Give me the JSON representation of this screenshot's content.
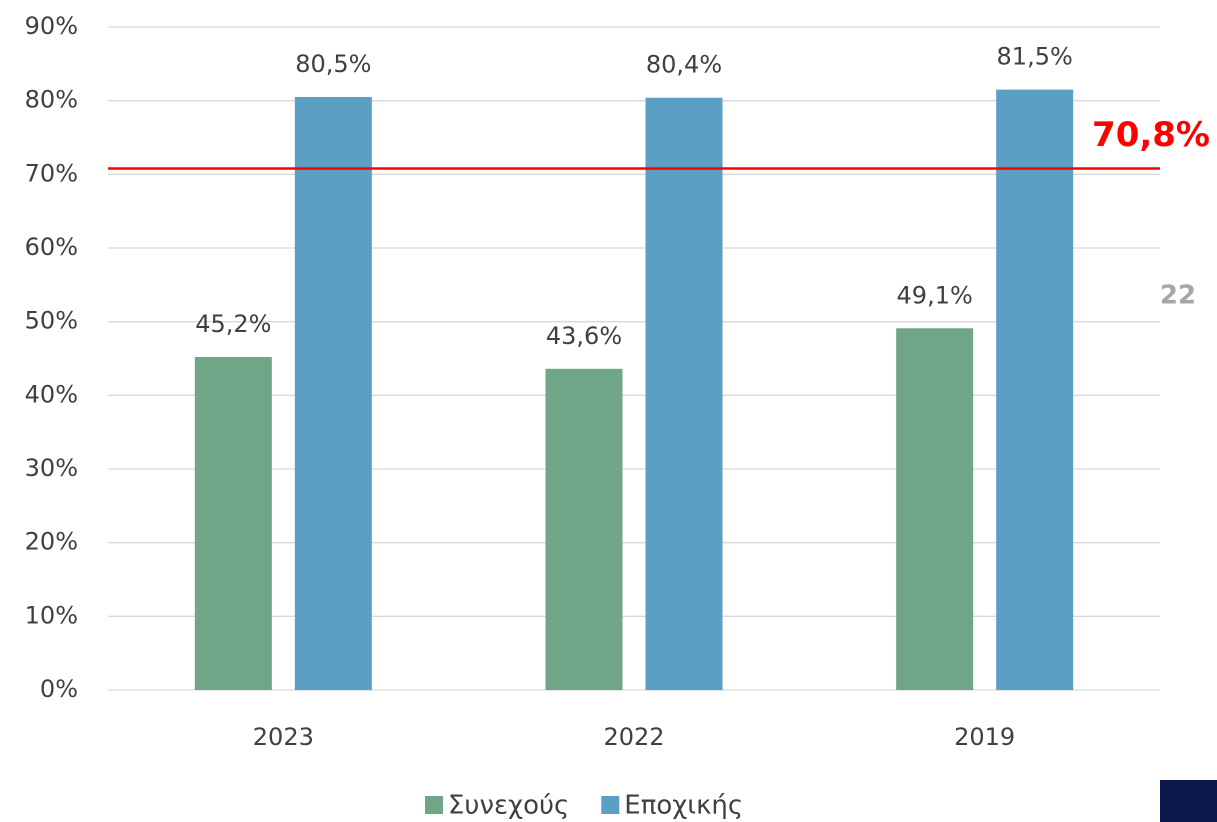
{
  "chart_data": {
    "type": "bar",
    "categories": [
      "2023",
      "2022",
      "2019"
    ],
    "series": [
      {
        "name": "Συνεχούς",
        "color": "#6fa687",
        "values": [
          45.2,
          43.6,
          49.1
        ],
        "value_labels": [
          "45,2%",
          "43,6%",
          "49,1%"
        ]
      },
      {
        "name": "Εποχικής",
        "color": "#5b9fc4",
        "values": [
          80.5,
          80.4,
          81.5
        ],
        "value_labels": [
          "80,5%",
          "80,4%",
          "81,5%"
        ]
      }
    ],
    "ylim": [
      0,
      90
    ],
    "yticks": [
      {
        "value": 0,
        "label": "0%"
      },
      {
        "value": 10,
        "label": "10%"
      },
      {
        "value": 20,
        "label": "20%"
      },
      {
        "value": 30,
        "label": "30%"
      },
      {
        "value": 40,
        "label": "40%"
      },
      {
        "value": 50,
        "label": "50%"
      },
      {
        "value": 60,
        "label": "60%"
      },
      {
        "value": 70,
        "label": "70%"
      },
      {
        "value": 80,
        "label": "80%"
      },
      {
        "value": 90,
        "label": "90%"
      }
    ],
    "grid": true,
    "reference_line": {
      "value": 70.8,
      "label": "70,8%",
      "color": "#ff0000"
    },
    "annotations": [
      "22"
    ]
  }
}
